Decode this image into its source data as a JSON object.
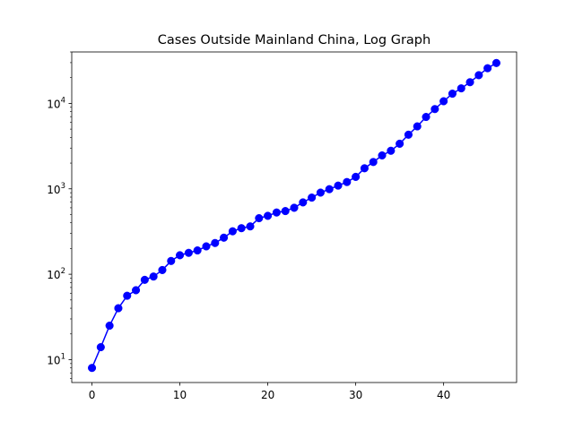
{
  "chart_data": {
    "type": "line",
    "title": "Cases Outside Mainland China, Log Graph",
    "xlabel": "",
    "ylabel": "",
    "y_scale": "log",
    "xlim": [
      -2.3,
      48.3
    ],
    "ylim": [
      5.4,
      40000
    ],
    "x_ticks": [
      0,
      10,
      20,
      30,
      40
    ],
    "y_ticks": [
      {
        "value": 10,
        "base": "10",
        "exp": "1"
      },
      {
        "value": 100,
        "base": "10",
        "exp": "2"
      },
      {
        "value": 1000,
        "base": "10",
        "exp": "3"
      },
      {
        "value": 10000,
        "base": "10",
        "exp": "4"
      }
    ],
    "grid": false,
    "series": [
      {
        "color": "#0000ff",
        "marker": "circle",
        "x": [
          0,
          1,
          2,
          3,
          4,
          5,
          6,
          7,
          8,
          9,
          10,
          11,
          12,
          13,
          14,
          15,
          16,
          17,
          18,
          19,
          20,
          21,
          22,
          23,
          24,
          25,
          26,
          27,
          28,
          29,
          30,
          31,
          32,
          33,
          34,
          35,
          36,
          37,
          38,
          39,
          40,
          41,
          42,
          43,
          44,
          45,
          46
        ],
        "values": [
          8,
          14,
          25,
          40,
          56,
          65,
          86,
          94,
          112,
          143,
          167,
          178,
          190,
          212,
          232,
          268,
          318,
          346,
          363,
          453,
          483,
          528,
          549,
          600,
          694,
          789,
          903,
          990,
          1090,
          1200,
          1380,
          1740,
          2060,
          2460,
          2790,
          3370,
          4300,
          5380,
          6940,
          8580,
          10600,
          13000,
          15000,
          17700,
          21400,
          25800,
          29700
        ]
      }
    ]
  }
}
